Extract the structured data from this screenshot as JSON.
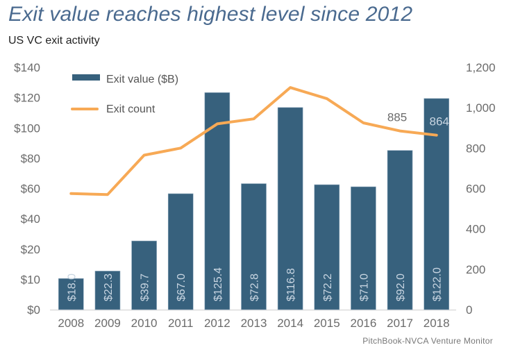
{
  "title": "Exit value reaches highest level since 2012",
  "subtitle": "US VC exit activity",
  "source": "PitchBook-NVCA Venture Monitor",
  "colors": {
    "bar": "#37617d",
    "line": "#f7a955",
    "title": "#4a6a8f",
    "axis_text": "#6b6b6b"
  },
  "chart_data": {
    "type": "bar",
    "title": "Exit value reaches highest level since 2012",
    "subtitle": "US VC exit activity",
    "categories": [
      "2008",
      "2009",
      "2010",
      "2011",
      "2012",
      "2013",
      "2014",
      "2015",
      "2016",
      "2017",
      "2018"
    ],
    "series": [
      {
        "name": "Exit value ($B)",
        "type": "bar",
        "axis": "left",
        "values": [
          18.0,
          22.3,
          39.7,
          67.0,
          125.4,
          72.8,
          116.8,
          72.2,
          71.0,
          92.0,
          122.0
        ],
        "labels": [
          "$18.0",
          "$22.3",
          "$39.7",
          "$67.0",
          "$125.4",
          "$72.8",
          "$116.8",
          "$72.2",
          "$71.0",
          "$92.0",
          "$122.0"
        ]
      },
      {
        "name": "Exit count",
        "type": "line",
        "axis": "right",
        "values": [
          575,
          570,
          765,
          800,
          920,
          945,
          1100,
          1045,
          925,
          885,
          864
        ],
        "labels": [
          null,
          null,
          null,
          null,
          null,
          null,
          null,
          null,
          null,
          "885",
          "864"
        ]
      }
    ],
    "left_axis": {
      "ylim": [
        0,
        140
      ],
      "tick_labels": [
        "$0",
        "$10",
        "$20",
        "$40",
        "$60",
        "$80",
        "$100",
        "$120",
        "$140"
      ]
    },
    "right_axis": {
      "ylim": [
        0,
        1200
      ],
      "tick_labels": [
        "0",
        "200",
        "400",
        "600",
        "800",
        "1,000",
        "1,200"
      ],
      "tick_values": [
        0,
        200,
        400,
        600,
        800,
        1000,
        1200
      ]
    },
    "xlabel": "",
    "ylabel": "",
    "grid": false,
    "legend": {
      "placement": "top-left",
      "entries": [
        "Exit value ($B)",
        "Exit count"
      ]
    }
  }
}
